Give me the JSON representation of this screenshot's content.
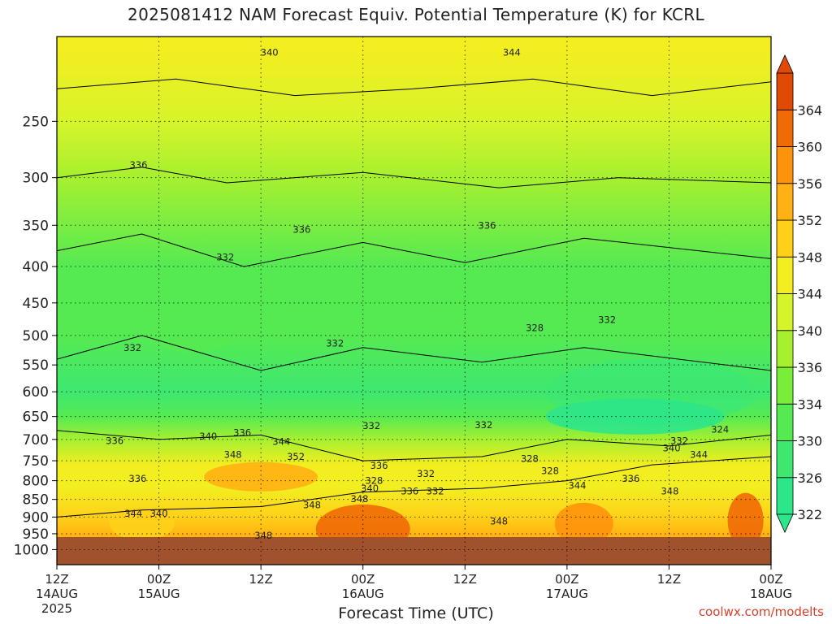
{
  "chart_data": {
    "type": "heatmap",
    "title": "2025081412 NAM Forecast Equiv. Potential Temperature (K) for KCRL",
    "xlabel": "Forecast Time (UTC)",
    "ylabel": "",
    "y_scale": "log-pressure",
    "ylim": [
      1050,
      190
    ],
    "y_ticks": [
      250,
      300,
      350,
      400,
      450,
      500,
      550,
      600,
      650,
      700,
      750,
      800,
      850,
      900,
      950,
      1000
    ],
    "x_range_hours": [
      0,
      84
    ],
    "x_ticks": [
      {
        "hour": 0,
        "label": "12Z",
        "date": "14AUG",
        "year": "2025"
      },
      {
        "hour": 12,
        "label": "00Z",
        "date": "15AUG",
        "year": ""
      },
      {
        "hour": 24,
        "label": "12Z",
        "date": "",
        "year": ""
      },
      {
        "hour": 36,
        "label": "00Z",
        "date": "16AUG",
        "year": ""
      },
      {
        "hour": 48,
        "label": "12Z",
        "date": "",
        "year": ""
      },
      {
        "hour": 60,
        "label": "00Z",
        "date": "17AUG",
        "year": ""
      },
      {
        "hour": 72,
        "label": "12Z",
        "date": "",
        "year": ""
      },
      {
        "hour": 84,
        "label": "00Z",
        "date": "18AUG",
        "year": ""
      }
    ],
    "colorbar": {
      "units": "K",
      "levels": [
        322,
        326,
        330,
        334,
        336,
        340,
        344,
        348,
        352,
        356,
        360,
        364
      ],
      "colors": [
        "#2ee68a",
        "#3ee870",
        "#55ea52",
        "#78ee3a",
        "#a6f030",
        "#d6f42a",
        "#f2ee20",
        "#ffd018",
        "#ffb012",
        "#ff920c",
        "#f06a06",
        "#e04a04"
      ]
    },
    "ground_color": "#a0522d",
    "grid": "dotted",
    "contour_labels": [
      {
        "hour": 25.0,
        "p": 200,
        "value": "340"
      },
      {
        "hour": 53.5,
        "p": 200,
        "value": "344"
      },
      {
        "hour": 9.6,
        "p": 288,
        "value": "336"
      },
      {
        "hour": 28.8,
        "p": 355,
        "value": "336"
      },
      {
        "hour": 50.6,
        "p": 350,
        "value": "336"
      },
      {
        "hour": 19.8,
        "p": 388,
        "value": "332"
      },
      {
        "hour": 8.9,
        "p": 520,
        "value": "332"
      },
      {
        "hour": 32.7,
        "p": 513,
        "value": "332"
      },
      {
        "hour": 56.2,
        "p": 488,
        "value": "328"
      },
      {
        "hour": 64.7,
        "p": 475,
        "value": "332"
      },
      {
        "hour": 6.8,
        "p": 703,
        "value": "336"
      },
      {
        "hour": 17.8,
        "p": 693,
        "value": "340"
      },
      {
        "hour": 21.8,
        "p": 685,
        "value": "336"
      },
      {
        "hour": 26.4,
        "p": 705,
        "value": "344"
      },
      {
        "hour": 20.7,
        "p": 735,
        "value": "348"
      },
      {
        "hour": 28.1,
        "p": 740,
        "value": "352"
      },
      {
        "hour": 37.0,
        "p": 670,
        "value": "332"
      },
      {
        "hour": 50.2,
        "p": 668,
        "value": "332"
      },
      {
        "hour": 78.0,
        "p": 678,
        "value": "324"
      },
      {
        "hour": 73.2,
        "p": 703,
        "value": "332"
      },
      {
        "hour": 72.3,
        "p": 720,
        "value": "340"
      },
      {
        "hour": 75.5,
        "p": 735,
        "value": "344"
      },
      {
        "hour": 55.6,
        "p": 745,
        "value": "328"
      },
      {
        "hour": 37.9,
        "p": 762,
        "value": "336"
      },
      {
        "hour": 43.4,
        "p": 782,
        "value": "332"
      },
      {
        "hour": 58.0,
        "p": 775,
        "value": "328"
      },
      {
        "hour": 67.5,
        "p": 795,
        "value": "336"
      },
      {
        "hour": 9.5,
        "p": 795,
        "value": "336"
      },
      {
        "hour": 37.3,
        "p": 800,
        "value": "328"
      },
      {
        "hour": 36.8,
        "p": 820,
        "value": "340"
      },
      {
        "hour": 41.5,
        "p": 828,
        "value": "336"
      },
      {
        "hour": 44.5,
        "p": 828,
        "value": "332"
      },
      {
        "hour": 61.2,
        "p": 812,
        "value": "344"
      },
      {
        "hour": 72.1,
        "p": 828,
        "value": "348"
      },
      {
        "hour": 35.6,
        "p": 848,
        "value": "348"
      },
      {
        "hour": 30.0,
        "p": 865,
        "value": "348"
      },
      {
        "hour": 9.0,
        "p": 890,
        "value": "344"
      },
      {
        "hour": 12.0,
        "p": 890,
        "value": "340"
      },
      {
        "hour": 52.0,
        "p": 912,
        "value": "348"
      },
      {
        "hour": 24.3,
        "p": 955,
        "value": "348"
      }
    ]
  },
  "watermark": "coolwx.com/modelts"
}
